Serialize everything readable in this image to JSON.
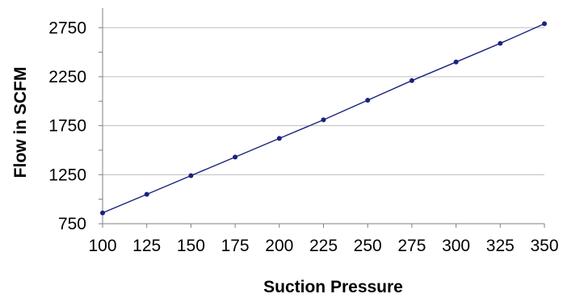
{
  "chart_data": {
    "type": "line",
    "title": "",
    "xlabel": "Suction Pressure",
    "ylabel": "Flow in SCFM",
    "x": [
      100,
      125,
      150,
      175,
      200,
      225,
      250,
      275,
      300,
      325,
      350
    ],
    "series": [
      {
        "values": [
          860,
          1050,
          1240,
          1430,
          1620,
          1810,
          2010,
          2210,
          2400,
          2590,
          2790
        ]
      }
    ],
    "x_ticks": [
      "100",
      "125",
      "150",
      "175",
      "200",
      "225",
      "250",
      "275",
      "300",
      "325",
      "350"
    ],
    "y_ticks": [
      "750",
      "1250",
      "1750",
      "2250",
      "2750"
    ],
    "xlim": [
      100,
      350
    ],
    "ylim": [
      750,
      2750
    ],
    "grid": true,
    "line_color": "#1a237e",
    "marker_color": "#1a237e",
    "grid_color": "#bdbdbd"
  }
}
